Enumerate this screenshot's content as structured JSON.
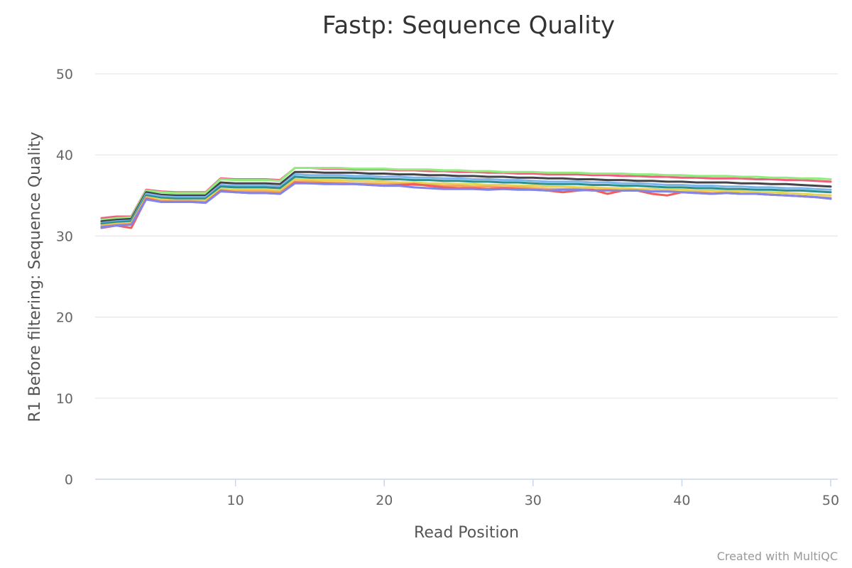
{
  "chart_data": {
    "type": "line",
    "title": "Fastp: Sequence Quality",
    "xlabel": "Read Position",
    "ylabel": "R1 Before filtering: Sequence Quality",
    "xlim": [
      1,
      50
    ],
    "ylim": [
      0,
      50
    ],
    "x_ticks": [
      10,
      20,
      30,
      40,
      50
    ],
    "y_ticks": [
      0,
      10,
      20,
      30,
      40,
      50
    ],
    "grid": true,
    "x": [
      1,
      2,
      3,
      4,
      5,
      6,
      7,
      8,
      9,
      10,
      11,
      12,
      13,
      14,
      15,
      16,
      17,
      18,
      19,
      20,
      21,
      22,
      23,
      24,
      25,
      26,
      27,
      28,
      29,
      30,
      31,
      32,
      33,
      34,
      35,
      36,
      37,
      38,
      39,
      40,
      41,
      42,
      43,
      44,
      45,
      46,
      47,
      48,
      49,
      50
    ],
    "series": [
      {
        "color": "#f15c80",
        "values": [
          32.2,
          32.4,
          32.4,
          35.7,
          35.5,
          35.4,
          35.4,
          35.4,
          37.1,
          37.0,
          37.0,
          37.0,
          36.9,
          38.4,
          38.4,
          38.3,
          38.3,
          38.2,
          38.2,
          38.2,
          38.1,
          38.1,
          38.0,
          38.0,
          37.9,
          37.9,
          37.8,
          37.8,
          37.7,
          37.7,
          37.6,
          37.6,
          37.6,
          37.5,
          37.5,
          37.4,
          37.4,
          37.3,
          37.3,
          37.2,
          37.2,
          37.1,
          37.1,
          37.1,
          37.0,
          37.0,
          36.9,
          36.9,
          36.8,
          36.7
        ]
      },
      {
        "color": "#90ed7d",
        "values": [
          32.0,
          32.2,
          32.3,
          35.6,
          35.4,
          35.3,
          35.3,
          35.3,
          37.0,
          36.9,
          36.9,
          36.9,
          36.8,
          38.4,
          38.4,
          38.4,
          38.4,
          38.3,
          38.3,
          38.3,
          38.2,
          38.2,
          38.2,
          38.1,
          38.1,
          38.0,
          38.0,
          37.9,
          37.9,
          37.9,
          37.8,
          37.8,
          37.8,
          37.7,
          37.7,
          37.7,
          37.6,
          37.6,
          37.5,
          37.5,
          37.4,
          37.4,
          37.4,
          37.3,
          37.3,
          37.2,
          37.2,
          37.1,
          37.1,
          37.0
        ]
      },
      {
        "color": "#434348",
        "values": [
          31.8,
          32.0,
          32.1,
          35.4,
          35.1,
          35.0,
          35.0,
          35.0,
          36.6,
          36.5,
          36.5,
          36.5,
          36.4,
          37.9,
          37.9,
          37.8,
          37.8,
          37.8,
          37.7,
          37.7,
          37.6,
          37.6,
          37.5,
          37.5,
          37.4,
          37.4,
          37.3,
          37.3,
          37.2,
          37.2,
          37.1,
          37.1,
          37.0,
          37.0,
          36.9,
          36.9,
          36.8,
          36.8,
          36.7,
          36.7,
          36.6,
          36.6,
          36.6,
          36.5,
          36.5,
          36.4,
          36.4,
          36.3,
          36.2,
          36.1
        ]
      },
      {
        "color": "#7cb5ec",
        "values": [
          31.6,
          31.8,
          31.9,
          35.2,
          34.9,
          34.8,
          34.8,
          34.8,
          36.3,
          36.2,
          36.2,
          36.2,
          36.1,
          37.6,
          37.5,
          37.5,
          37.5,
          37.4,
          37.4,
          37.3,
          37.3,
          37.2,
          37.2,
          37.1,
          37.1,
          37.0,
          37.0,
          36.9,
          36.9,
          36.8,
          36.7,
          36.7,
          36.7,
          36.6,
          36.6,
          36.5,
          36.5,
          36.4,
          36.3,
          36.3,
          36.2,
          36.2,
          36.1,
          36.1,
          36.0,
          36.0,
          35.9,
          35.9,
          35.8,
          35.7
        ]
      },
      {
        "color": "#2b908f",
        "values": [
          31.5,
          31.7,
          31.8,
          35.0,
          34.7,
          34.6,
          34.6,
          34.6,
          36.1,
          36.0,
          36.0,
          36.0,
          35.9,
          37.3,
          37.2,
          37.2,
          37.2,
          37.1,
          37.1,
          37.0,
          37.0,
          36.9,
          36.9,
          36.8,
          36.8,
          36.7,
          36.7,
          36.6,
          36.6,
          36.5,
          36.4,
          36.4,
          36.4,
          36.3,
          36.3,
          36.2,
          36.2,
          36.1,
          36.0,
          36.0,
          35.9,
          35.9,
          35.8,
          35.8,
          35.7,
          35.7,
          35.6,
          35.6,
          35.5,
          35.4
        ]
      },
      {
        "color": "#e4d354",
        "values": [
          31.3,
          31.5,
          31.6,
          34.8,
          34.5,
          34.4,
          34.4,
          34.4,
          35.8,
          35.7,
          35.7,
          35.7,
          35.6,
          37.0,
          36.9,
          36.9,
          36.9,
          36.8,
          36.8,
          36.7,
          36.6,
          36.6,
          36.5,
          36.5,
          36.4,
          36.4,
          36.3,
          36.3,
          36.2,
          36.2,
          36.1,
          36.1,
          36.0,
          36.0,
          35.9,
          35.9,
          35.8,
          35.8,
          35.7,
          35.7,
          35.6,
          35.6,
          35.5,
          35.5,
          35.4,
          35.4,
          35.3,
          35.2,
          35.1,
          35.0
        ]
      },
      {
        "color": "#f7a35c",
        "values": [
          31.2,
          31.4,
          31.5,
          34.7,
          34.3,
          34.3,
          34.3,
          34.2,
          35.6,
          35.5,
          35.5,
          35.5,
          35.4,
          36.7,
          36.7,
          36.6,
          36.6,
          36.5,
          36.5,
          36.4,
          36.4,
          36.3,
          36.3,
          36.2,
          36.2,
          36.1,
          36.1,
          36.0,
          36.0,
          35.9,
          35.8,
          35.8,
          35.8,
          35.7,
          35.7,
          35.6,
          35.6,
          35.5,
          35.5,
          35.4,
          35.4,
          35.3,
          35.3,
          35.2,
          35.2,
          35.1,
          35.0,
          34.9,
          34.8,
          34.7
        ]
      },
      {
        "color": "#f45b5b",
        "values": [
          31.0,
          31.3,
          31.0,
          34.6,
          34.2,
          34.2,
          34.2,
          34.1,
          35.6,
          35.4,
          35.3,
          35.3,
          35.2,
          36.6,
          36.5,
          36.5,
          36.4,
          36.4,
          36.3,
          36.2,
          36.3,
          36.4,
          36.2,
          36.0,
          35.9,
          35.9,
          35.8,
          35.9,
          35.8,
          35.7,
          35.6,
          35.4,
          35.6,
          35.7,
          35.2,
          35.6,
          35.6,
          35.2,
          35.0,
          35.4,
          35.3,
          35.2,
          35.3,
          35.2,
          35.2,
          35.1,
          35.0,
          34.9,
          34.8,
          34.6
        ]
      },
      {
        "color": "#8085e9",
        "values": [
          31.1,
          31.3,
          31.4,
          34.5,
          34.2,
          34.2,
          34.2,
          34.1,
          35.5,
          35.4,
          35.3,
          35.3,
          35.2,
          36.5,
          36.5,
          36.4,
          36.4,
          36.4,
          36.3,
          36.2,
          36.2,
          36.0,
          35.9,
          35.8,
          35.8,
          35.8,
          35.7,
          35.8,
          35.7,
          35.7,
          35.6,
          35.7,
          35.7,
          35.6,
          35.6,
          35.6,
          35.6,
          35.5,
          35.5,
          35.4,
          35.3,
          35.2,
          35.3,
          35.2,
          35.2,
          35.1,
          35.0,
          34.9,
          34.8,
          34.6
        ]
      }
    ]
  },
  "credit": "Created with MultiQC"
}
